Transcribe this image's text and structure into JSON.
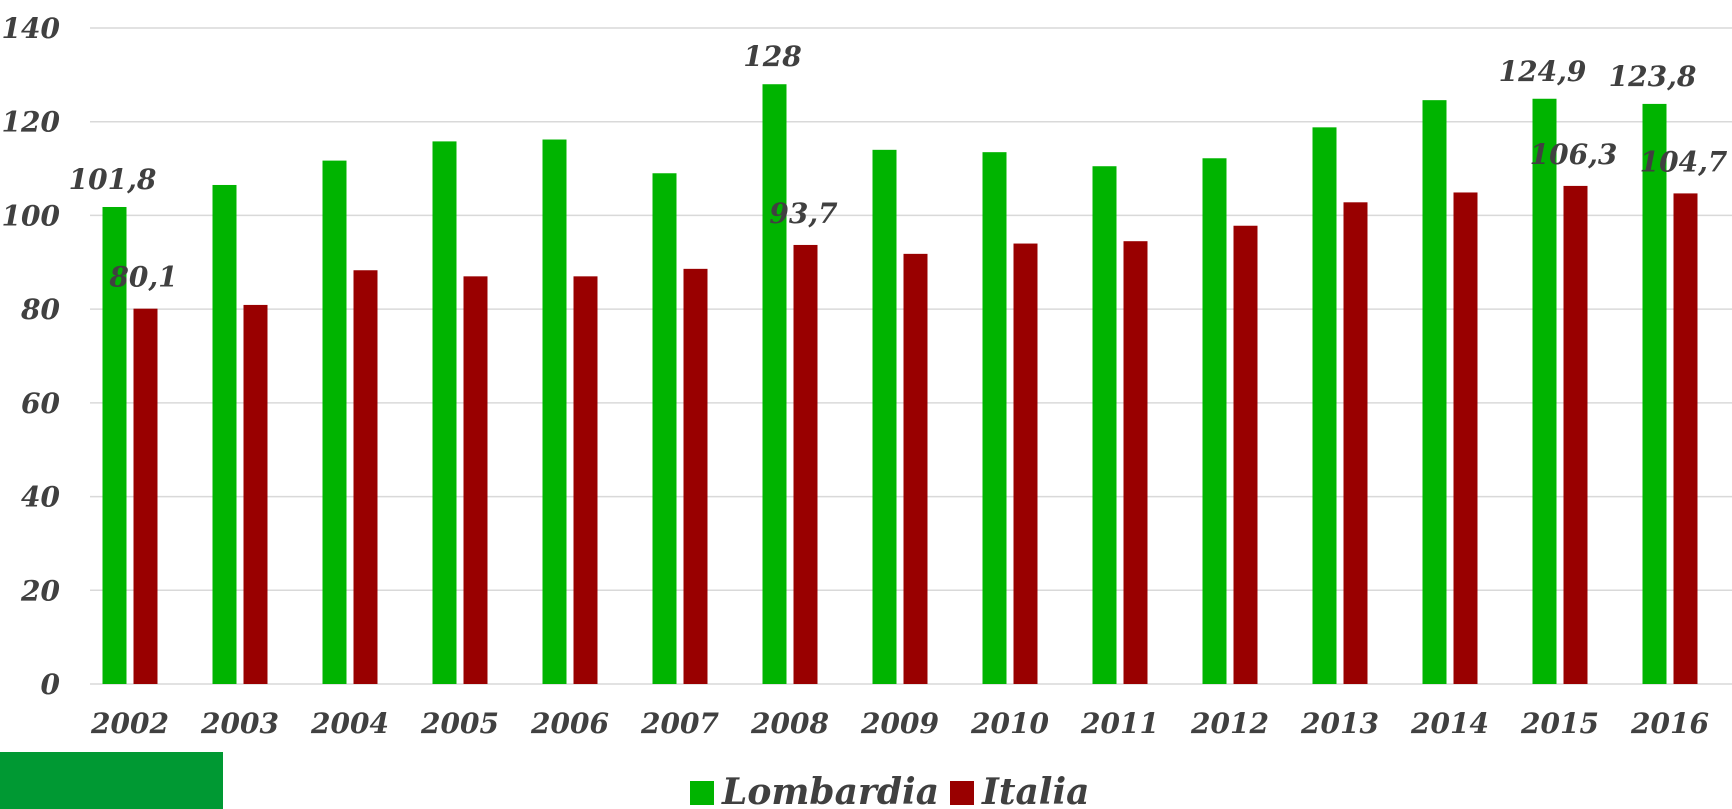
{
  "chart_data": {
    "type": "bar",
    "categories": [
      "2002",
      "2003",
      "2004",
      "2005",
      "2006",
      "2007",
      "2008",
      "2009",
      "2010",
      "2011",
      "2012",
      "2013",
      "2014",
      "2015",
      "2016"
    ],
    "series": [
      {
        "name": "Lombardia",
        "color": "#00b400",
        "values": [
          101.8,
          106.5,
          111.7,
          115.8,
          116.2,
          109.0,
          128,
          114.0,
          113.5,
          110.5,
          112.2,
          118.8,
          124.6,
          124.9,
          123.8
        ],
        "labels": [
          "101,8",
          "",
          "",
          "",
          "",
          "",
          "128",
          "",
          "",
          "",
          "",
          "",
          "",
          "124,9",
          "123,8"
        ]
      },
      {
        "name": "Italia",
        "color": "#990000",
        "values": [
          80.1,
          80.9,
          88.3,
          87.0,
          87.0,
          88.6,
          93.7,
          91.8,
          94.0,
          94.5,
          97.8,
          102.8,
          104.9,
          106.3,
          104.7
        ],
        "labels": [
          "80,1",
          "",
          "",
          "",
          "",
          "",
          "93,7",
          "",
          "",
          "",
          "",
          "",
          "",
          "106,3",
          "104,7"
        ]
      }
    ],
    "yticks": [
      "0",
      "20",
      "40",
      "60",
      "80",
      "100",
      "120",
      "140"
    ],
    "ylim": [
      0,
      140
    ],
    "grid": true,
    "legend": "bottom-center",
    "accent_block_color": "#009933"
  }
}
